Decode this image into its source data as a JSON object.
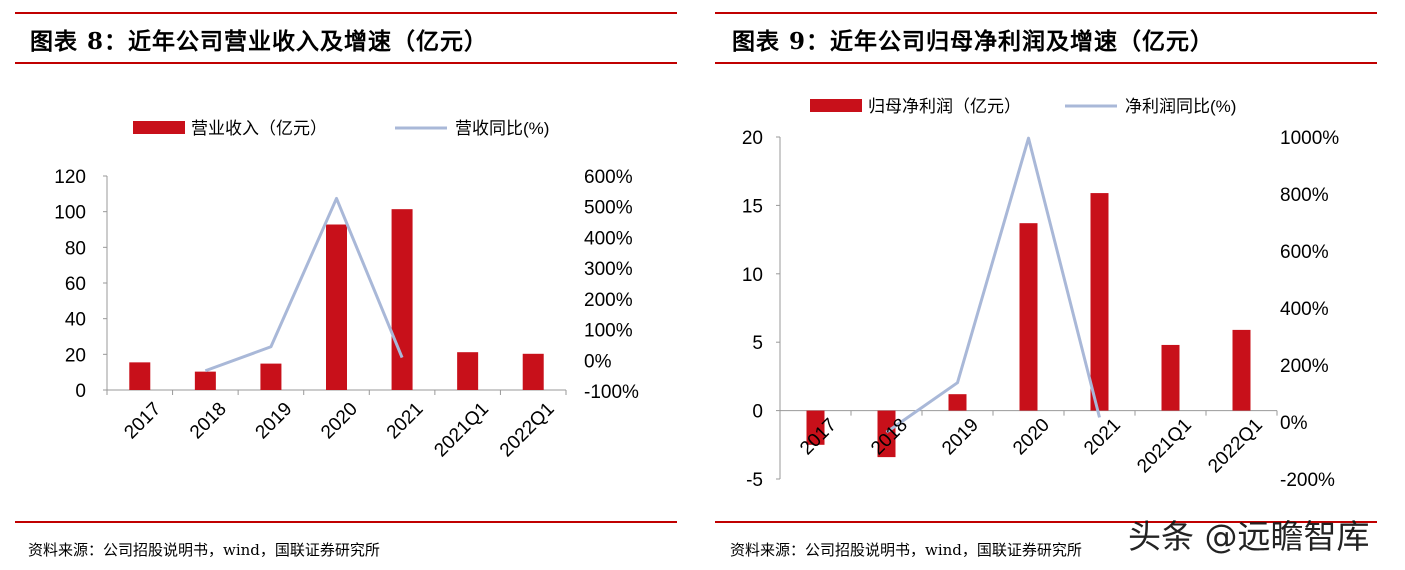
{
  "colors": {
    "bar": "#c8101a",
    "line": "#a9b8d8",
    "rule": "#c00000"
  },
  "watermark": "头条 @远瞻智库",
  "charts": [
    {
      "title": "图表 8：近年公司营业收入及增速（亿元）",
      "source": "资料来源：公司招股说明书，wind，国联证券研究所",
      "legend": {
        "bar": "营业收入（亿元）",
        "line": "营收同比(%)"
      }
    },
    {
      "title": "图表 9：近年公司归母净利润及增速（亿元）",
      "source": "资料来源：公司招股说明书，wind，国联证券研究所",
      "legend": {
        "bar": "归母净利润（亿元）",
        "line": "净利润同比(%)"
      }
    }
  ],
  "chart_data": [
    {
      "type": "bar",
      "categories": [
        "2017",
        "2018",
        "2019",
        "2020",
        "2021",
        "2021Q1",
        "2022Q1"
      ],
      "series": [
        {
          "name": "营业收入（亿元）",
          "type": "bar",
          "axis": "left",
          "values": [
            15.5,
            10.3,
            14.8,
            92.8,
            101.4,
            21.2,
            20.3
          ]
        },
        {
          "name": "营收同比(%)",
          "type": "line",
          "axis": "right",
          "values": [
            null,
            -0.34,
            0.44,
            5.27,
            0.09,
            null,
            null
          ]
        }
      ],
      "ylim": [
        0,
        120
      ],
      "yticks": [
        "0",
        "20",
        "40",
        "60",
        "80",
        "100",
        "120"
      ],
      "y2lim": [
        -1.0,
        6.0
      ],
      "y2ticks": [
        "-100%",
        "0%",
        "100%",
        "200%",
        "300%",
        "400%",
        "500%",
        "600%"
      ],
      "legend_position": "top"
    },
    {
      "type": "bar",
      "categories": [
        "2017",
        "2018",
        "2019",
        "2020",
        "2021",
        "2021Q1",
        "2022Q1"
      ],
      "series": [
        {
          "name": "归母净利润（亿元）",
          "type": "bar",
          "axis": "left",
          "values": [
            -2.5,
            -3.4,
            1.2,
            13.7,
            15.9,
            4.8,
            5.9
          ]
        },
        {
          "name": "净利润同比(%)",
          "type": "line",
          "axis": "right",
          "values": [
            null,
            -0.36,
            1.38,
            9.96,
            0.16,
            null,
            null
          ]
        }
      ],
      "ylim": [
        -5,
        20
      ],
      "yticks": [
        "-5",
        "0",
        "5",
        "10",
        "15",
        "20"
      ],
      "y2lim": [
        -2.0,
        10.0
      ],
      "y2ticks": [
        "-200%",
        "0%",
        "200%",
        "400%",
        "600%",
        "800%",
        "1000%"
      ],
      "legend_position": "top"
    }
  ]
}
